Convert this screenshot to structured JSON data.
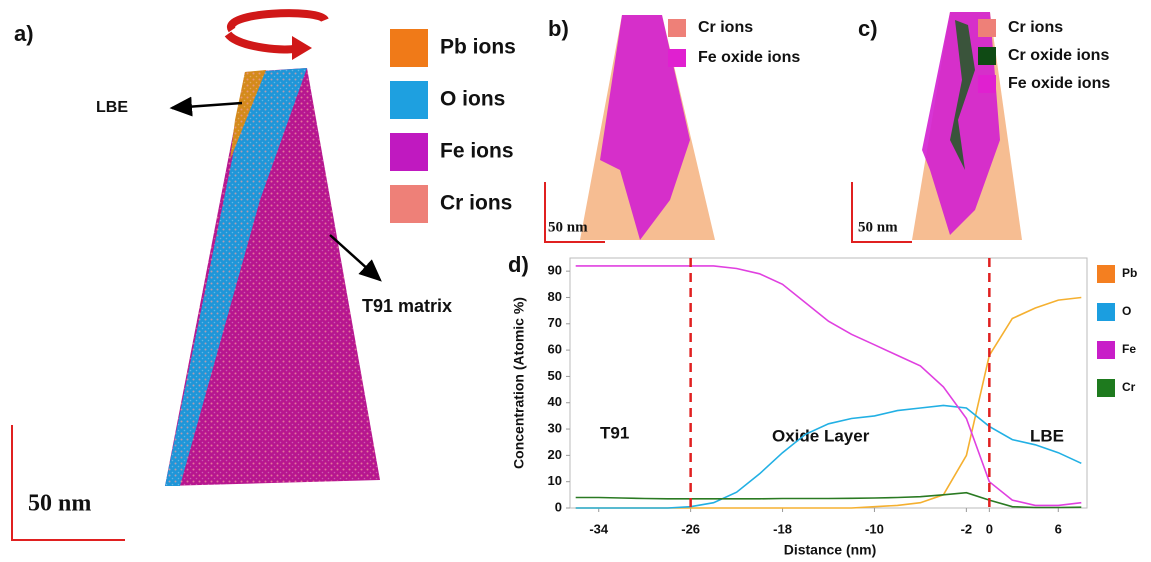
{
  "chart_data": {
    "type": "line",
    "panel_label": "d)",
    "x_label": "Distance (nm)",
    "y_label": "Concentration (Atomic %)",
    "x": [
      -36,
      -34,
      -32,
      -30,
      -28,
      -26,
      -24,
      -22,
      -20,
      -18,
      -16,
      -14,
      -12,
      -10,
      -8,
      -6,
      -4,
      -2,
      0,
      2,
      4,
      6,
      8
    ],
    "series": [
      {
        "name": "Pb",
        "color": "#f5b030",
        "legend_color": "#f47f20",
        "values": [
          0,
          0,
          0,
          0,
          0,
          0,
          0,
          0,
          0,
          0,
          0,
          0,
          0,
          0.5,
          1,
          2,
          5,
          20,
          58,
          72,
          76,
          79,
          80
        ]
      },
      {
        "name": "O",
        "color": "#22b0e4",
        "legend_color": "#1b9ee0",
        "values": [
          0,
          0,
          0,
          0,
          0,
          0.5,
          2,
          6,
          13,
          21,
          28,
          32,
          34,
          35,
          37,
          38,
          39,
          38,
          31,
          26,
          24,
          21,
          17
        ]
      },
      {
        "name": "Fe",
        "color": "#e040e0",
        "legend_color": "#c81ec8",
        "values": [
          92,
          92,
          92,
          92,
          92,
          92,
          92,
          91,
          89,
          85,
          78,
          71,
          66,
          62,
          58,
          54,
          46,
          34,
          10,
          3,
          1,
          1,
          2
        ]
      },
      {
        "name": "Cr",
        "color": "#2a7a22",
        "legend_color": "#1e7a1e",
        "values": [
          4,
          4,
          3.8,
          3.6,
          3.5,
          3.5,
          3.5,
          3.5,
          3.5,
          3.6,
          3.6,
          3.6,
          3.7,
          3.8,
          4,
          4.3,
          5,
          5.8,
          3,
          0.5,
          0.2,
          0.2,
          0.3
        ]
      }
    ],
    "xlim": [
      -36.5,
      8.5
    ],
    "xticks": [
      -34,
      -26,
      -18,
      -10,
      -2,
      0,
      6
    ],
    "ylim": [
      0,
      95
    ],
    "yticks": [
      0,
      10,
      20,
      30,
      40,
      50,
      60,
      70,
      80,
      90
    ],
    "vlines": [
      -26,
      0
    ],
    "vline_color": "#e02020",
    "annotations": [
      "T91",
      "Oxide Layer",
      "LBE"
    ]
  },
  "panel_a": {
    "label": "a)",
    "legend": [
      {
        "text": "Pb ions",
        "color": "#f07a18"
      },
      {
        "text": "O ions",
        "color": "#1ea0e0"
      },
      {
        "text": "Fe ions",
        "color": "#c019c0"
      },
      {
        "text": "Cr ions",
        "color": "#ee8078"
      }
    ],
    "arrow_labels": [
      "LBE",
      "T91 matrix"
    ],
    "scale": "50 nm"
  },
  "panel_b": {
    "label": "b)",
    "legend": [
      {
        "text": "Cr ions",
        "color": "#ee8078"
      },
      {
        "text": "Fe oxide ions",
        "color": "#e020d0"
      }
    ],
    "scale": "50 nm"
  },
  "panel_c": {
    "label": "c)",
    "legend": [
      {
        "text": "Cr ions",
        "color": "#ee8078"
      },
      {
        "text": "Cr oxide ions",
        "color": "#0f4a14"
      },
      {
        "text": "Fe oxide ions",
        "color": "#e020d0"
      }
    ],
    "scale": "50 nm"
  }
}
